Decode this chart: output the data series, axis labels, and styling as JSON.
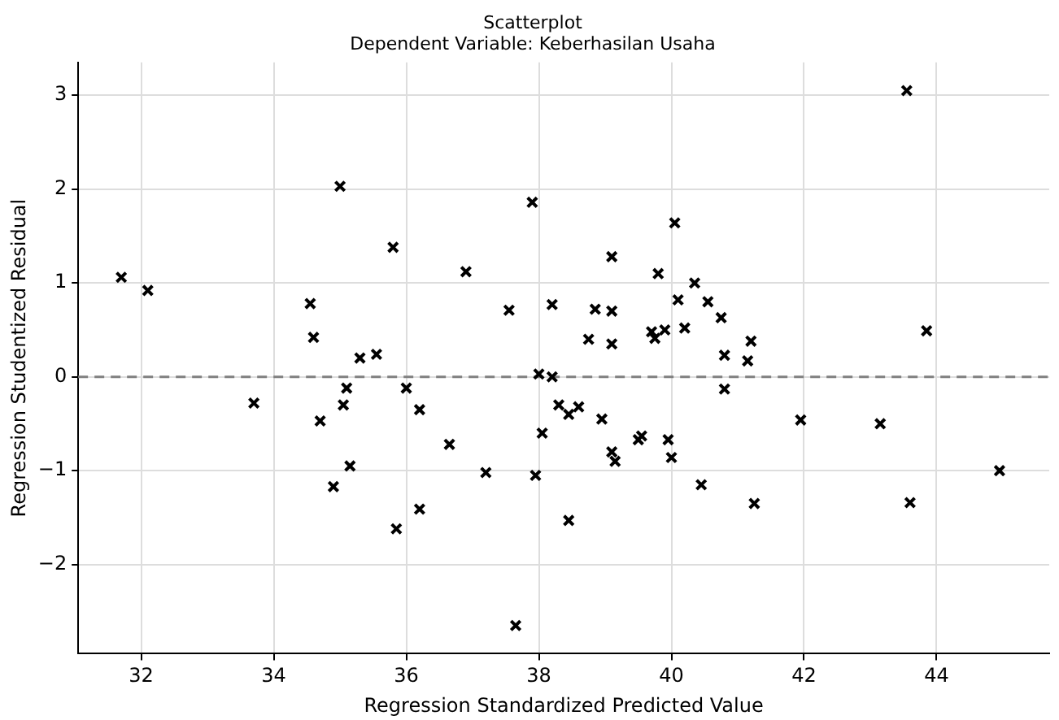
{
  "chart_data": {
    "type": "scatter",
    "title": "Scatterplot",
    "subtitle": "Dependent Variable: Keberhasilan Usaha",
    "xlabel": "Regression Standardized Predicted Value",
    "ylabel": "Regression Studentized Residual",
    "marker": "cross",
    "grid": true,
    "legend": false,
    "xlim": [
      31.05,
      45.7
    ],
    "ylim": [
      -2.95,
      3.35
    ],
    "xticks": [
      32,
      34,
      36,
      38,
      40,
      42,
      44
    ],
    "yticks": [
      {
        "value": -2,
        "label": "−2"
      },
      {
        "value": -1,
        "label": "−1"
      },
      0,
      1,
      2,
      3
    ],
    "ref_lines": [
      {
        "axis": "y",
        "value": 0,
        "color": "#808080",
        "line_style": "dashed"
      }
    ],
    "series": [
      {
        "color": "#000000",
        "x": [
          31.7,
          32.1,
          33.7,
          34.55,
          34.6,
          34.7,
          35.0,
          34.9,
          35.1,
          35.05,
          35.15,
          35.3,
          35.55,
          35.8,
          35.85,
          36.0,
          36.2,
          36.2,
          36.65,
          36.9,
          37.2,
          37.55,
          37.65,
          37.9,
          38.0,
          38.05,
          37.95,
          38.2,
          38.2,
          38.3,
          38.45,
          38.45,
          38.6,
          38.75,
          38.85,
          38.95,
          39.1,
          39.1,
          39.1,
          39.1,
          39.15,
          39.5,
          39.55,
          39.7,
          39.75,
          39.8,
          39.9,
          39.95,
          40.0,
          40.05,
          40.1,
          40.2,
          40.35,
          40.45,
          40.55,
          40.75,
          40.8,
          40.8,
          41.15,
          41.2,
          41.25,
          41.95,
          43.15,
          43.55,
          43.6,
          43.85,
          44.95
        ],
        "values": [
          1.06,
          0.92,
          -0.28,
          0.78,
          0.42,
          -0.47,
          2.03,
          -1.17,
          -0.12,
          -0.3,
          -0.95,
          0.2,
          0.24,
          1.38,
          -1.62,
          -0.12,
          -0.35,
          -1.41,
          -0.72,
          1.12,
          -1.02,
          0.71,
          -2.65,
          1.86,
          0.03,
          -0.6,
          -1.05,
          0.0,
          0.77,
          -0.3,
          -1.53,
          -0.4,
          -0.32,
          0.4,
          0.72,
          -0.45,
          0.35,
          0.7,
          1.28,
          -0.8,
          -0.9,
          -0.67,
          -0.63,
          0.48,
          0.41,
          1.1,
          0.5,
          -0.67,
          -0.86,
          1.64,
          0.82,
          0.52,
          1.0,
          -1.15,
          0.8,
          0.63,
          0.23,
          -0.13,
          0.17,
          0.38,
          -1.35,
          -0.46,
          -0.5,
          3.05,
          -1.34,
          0.49,
          -1.0
        ]
      }
    ]
  }
}
